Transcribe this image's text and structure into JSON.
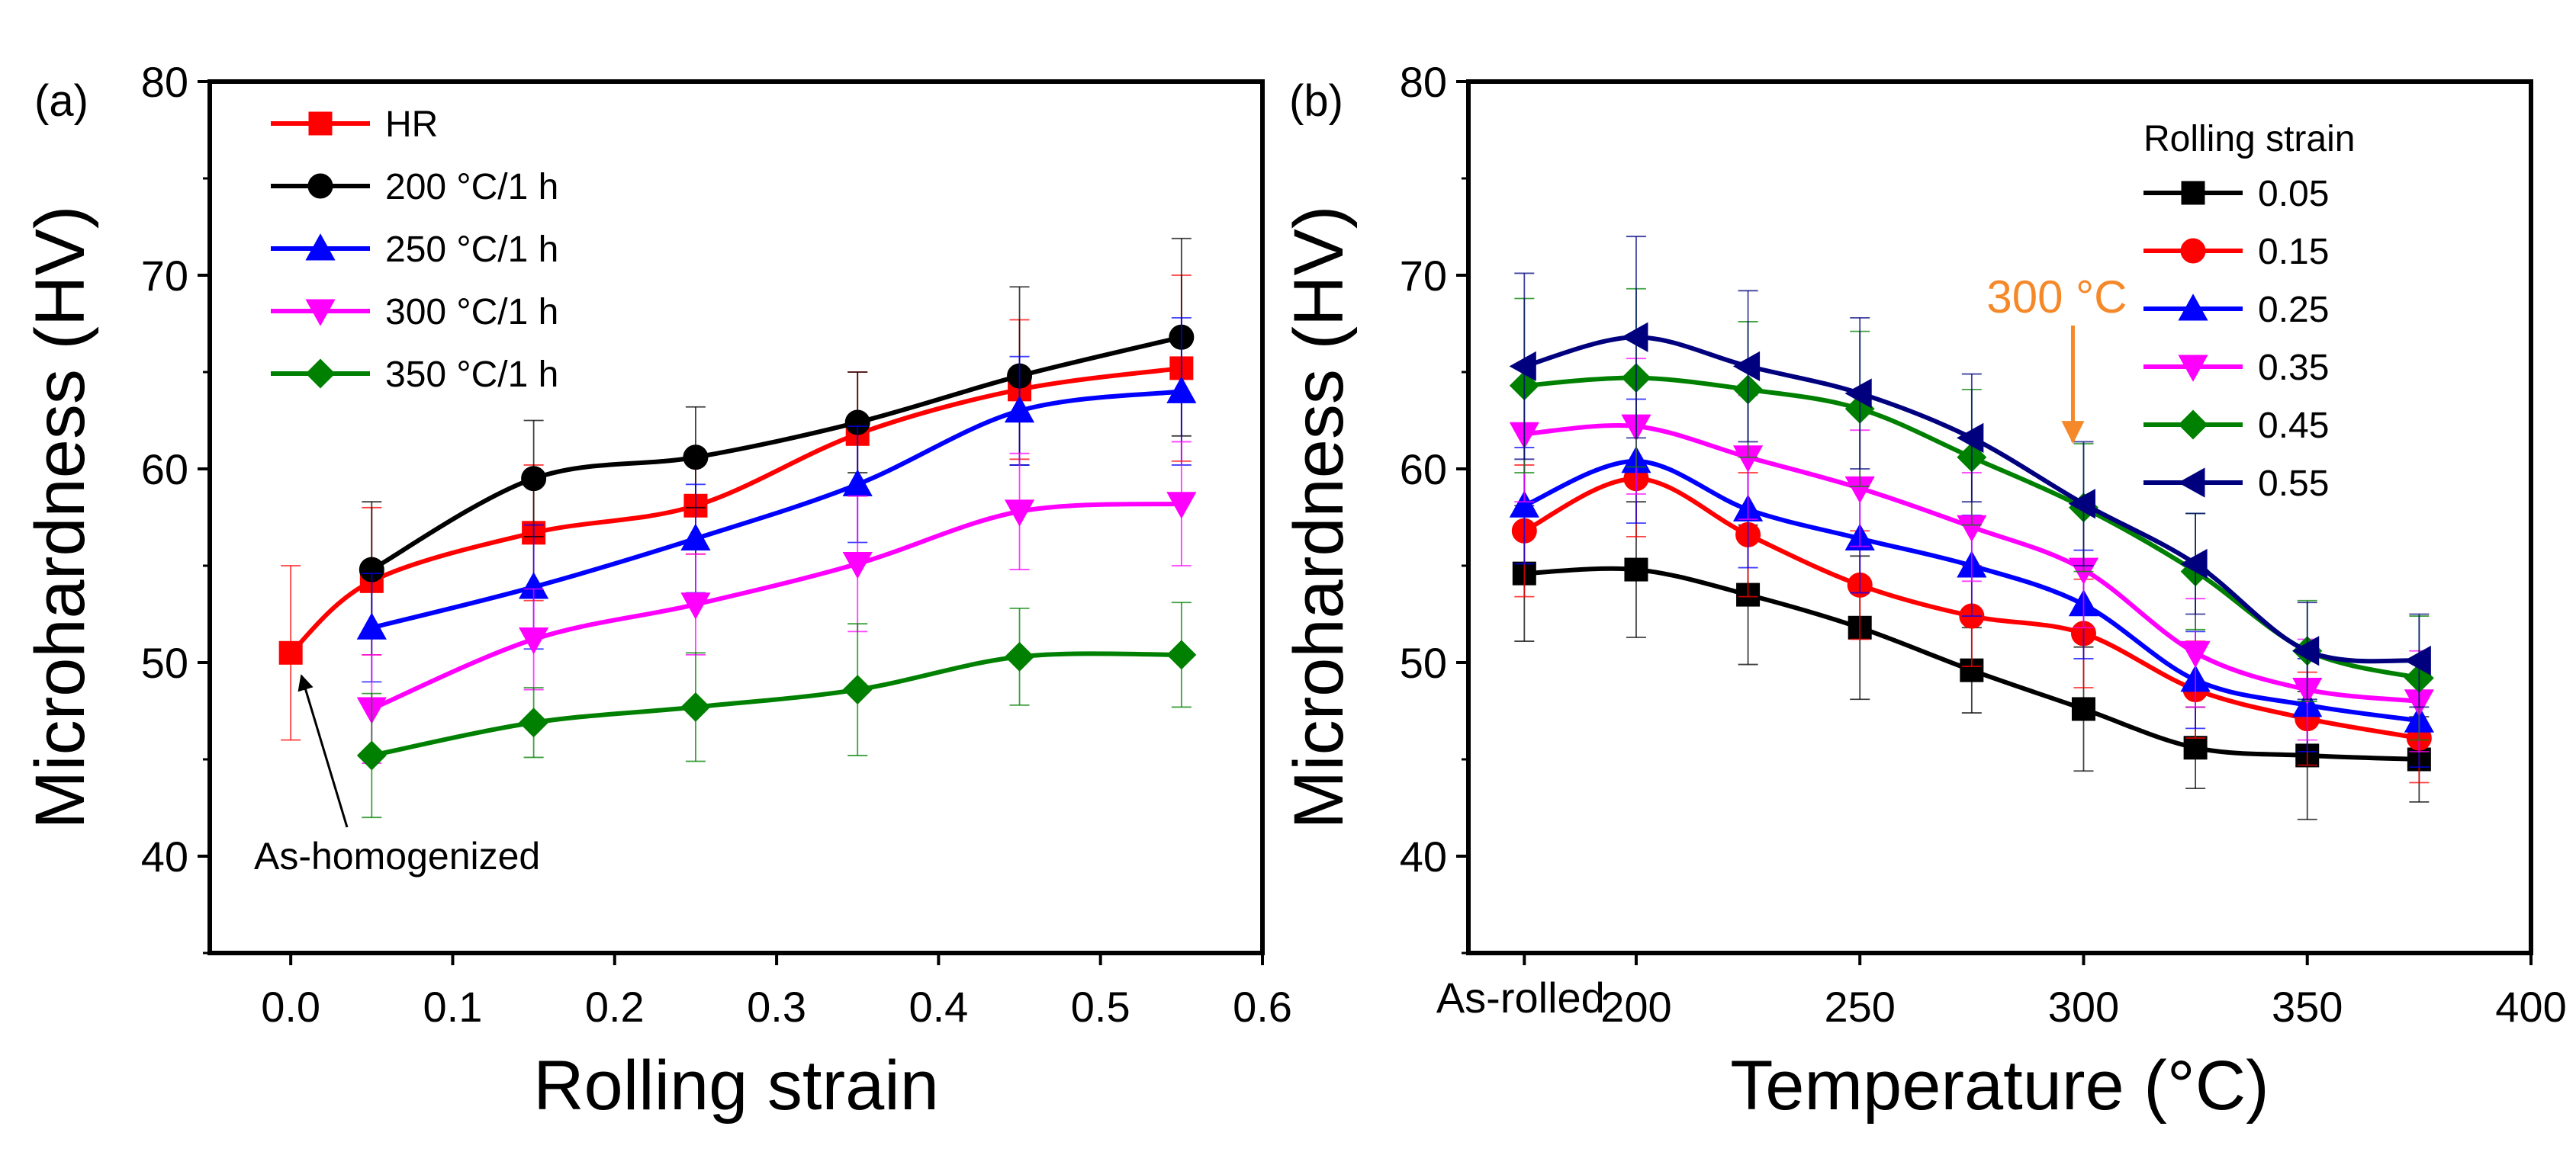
{
  "chart_data": [
    {
      "panel_label": "(a)",
      "type": "line",
      "xlabel": "Rolling strain",
      "ylabel": "Microhardness (HV)",
      "xlim": [
        -0.05,
        0.6
      ],
      "ylim": [
        35,
        80
      ],
      "xticks": [
        0.0,
        0.1,
        0.2,
        0.3,
        0.4,
        0.5,
        0.6
      ],
      "xtick_labels": [
        "0.0",
        "0.1",
        "0.2",
        "0.3",
        "0.4",
        "0.5",
        "0.6"
      ],
      "yticks": [
        40,
        50,
        60,
        70,
        80
      ],
      "ytick_labels": [
        "40",
        "50",
        "60",
        "70",
        "80"
      ],
      "legend_position": "top-left",
      "series": [
        {
          "name": "HR",
          "color": "#ff0000",
          "marker": "square",
          "x": [
            0.0,
            0.05,
            0.15,
            0.25,
            0.35,
            0.45,
            0.55
          ],
          "y": [
            50.5,
            54.2,
            56.7,
            58.1,
            61.8,
            64.1,
            65.2
          ],
          "err": [
            4.5,
            3.8,
            3.5,
            2.5,
            3.2,
            3.6,
            4.8
          ]
        },
        {
          "name": "200 °C/1 h",
          "color": "#000000",
          "marker": "circle",
          "x": [
            0.05,
            0.15,
            0.25,
            0.35,
            0.45,
            0.55
          ],
          "y": [
            54.8,
            59.5,
            60.6,
            62.4,
            64.8,
            66.8
          ],
          "err": [
            3.5,
            3.0,
            2.6,
            2.6,
            4.6,
            5.1
          ]
        },
        {
          "name": "250 °C/1 h",
          "color": "#0000ff",
          "marker": "triangle-up",
          "x": [
            0.05,
            0.15,
            0.25,
            0.35,
            0.45,
            0.55
          ],
          "y": [
            51.8,
            53.9,
            56.4,
            59.2,
            63.0,
            64.0
          ],
          "err": [
            2.8,
            3.2,
            2.8,
            3.0,
            2.8,
            3.8
          ]
        },
        {
          "name": "300 °C/1 h",
          "color": "#ff00ff",
          "marker": "triangle-down",
          "x": [
            0.05,
            0.15,
            0.25,
            0.35,
            0.45,
            0.55
          ],
          "y": [
            47.6,
            51.2,
            53.0,
            55.1,
            57.8,
            58.2
          ],
          "err": [
            2.8,
            2.6,
            2.6,
            3.5,
            3.0,
            3.2
          ]
        },
        {
          "name": "350 °C/1 h",
          "color": "#008000",
          "marker": "diamond",
          "x": [
            0.05,
            0.15,
            0.25,
            0.35,
            0.45,
            0.55
          ],
          "y": [
            45.2,
            46.9,
            47.7,
            48.6,
            50.3,
            50.4
          ],
          "err": [
            3.2,
            1.8,
            2.8,
            3.4,
            2.5,
            2.7
          ]
        }
      ],
      "annotations": [
        {
          "text": "As-homogenized",
          "points_to": {
            "x": 0.0,
            "y": 50.5
          }
        }
      ]
    },
    {
      "panel_label": "(b)",
      "type": "line",
      "xlabel": "Temperature (°C)",
      "ylabel": "Microhardness (HV)",
      "xlim": [
        162.5,
        400
      ],
      "ylim": [
        35,
        80
      ],
      "xticks": [
        200,
        250,
        300,
        350,
        400
      ],
      "xtick_labels": [
        "200",
        "250",
        "300",
        "350",
        "400"
      ],
      "extra_xtick": {
        "label": "As-rolled",
        "x": 175
      },
      "yticks": [
        40,
        50,
        60,
        70,
        80
      ],
      "ytick_labels": [
        "40",
        "50",
        "60",
        "70",
        "80"
      ],
      "legend_title": "Rolling strain",
      "legend_position": "top-right",
      "series": [
        {
          "name": "0.05",
          "color": "#000000",
          "marker": "square",
          "x": [
            175,
            200,
            225,
            250,
            275,
            300,
            325,
            350,
            375
          ],
          "y": [
            54.6,
            54.8,
            53.5,
            51.8,
            49.6,
            47.6,
            45.6,
            45.2,
            45.0
          ],
          "err": [
            3.5,
            3.5,
            3.6,
            3.7,
            2.2,
            3.2,
            2.1,
            3.3,
            2.2
          ]
        },
        {
          "name": "0.15",
          "color": "#ff0000",
          "marker": "circle",
          "x": [
            175,
            200,
            225,
            250,
            275,
            300,
            325,
            350,
            375
          ],
          "y": [
            56.8,
            59.5,
            56.6,
            54.0,
            52.4,
            51.5,
            48.6,
            47.1,
            46.1
          ],
          "err": [
            3.4,
            3.0,
            3.2,
            2.8,
            2.6,
            2.8,
            2.5,
            2.4,
            2.3
          ]
        },
        {
          "name": "0.25",
          "color": "#0000ff",
          "marker": "triangle-up",
          "x": [
            175,
            200,
            225,
            250,
            275,
            300,
            325,
            350,
            375
          ],
          "y": [
            58.1,
            60.4,
            57.9,
            56.4,
            55.0,
            53.0,
            49.1,
            47.8,
            47.0
          ],
          "err": [
            3.0,
            3.2,
            3.0,
            2.8,
            2.6,
            2.8,
            2.5,
            2.4,
            2.4
          ]
        },
        {
          "name": "0.35",
          "color": "#ff00ff",
          "marker": "triangle-down",
          "x": [
            175,
            200,
            225,
            250,
            275,
            300,
            325,
            350,
            375
          ],
          "y": [
            61.8,
            62.2,
            60.6,
            59.0,
            57.0,
            54.8,
            50.5,
            48.6,
            48.0
          ],
          "err": [
            3.5,
            3.5,
            3.2,
            3.0,
            2.8,
            3.0,
            2.8,
            2.6,
            2.6
          ]
        },
        {
          "name": "0.45",
          "color": "#008000",
          "marker": "diamond",
          "x": [
            175,
            200,
            225,
            250,
            275,
            300,
            325,
            350,
            375
          ],
          "y": [
            64.3,
            64.7,
            64.1,
            63.1,
            60.6,
            58.0,
            54.7,
            50.6,
            49.2
          ],
          "err": [
            4.5,
            4.6,
            3.5,
            4.0,
            3.5,
            3.3,
            3.0,
            2.6,
            3.2
          ]
        },
        {
          "name": "0.55",
          "color": "#00007f",
          "marker": "triangle-left",
          "x": [
            175,
            200,
            225,
            250,
            275,
            300,
            325,
            350,
            375
          ],
          "y": [
            65.3,
            66.8,
            65.3,
            63.9,
            61.6,
            58.2,
            55.1,
            50.6,
            50.1
          ],
          "err": [
            4.8,
            5.2,
            3.9,
            3.9,
            3.3,
            3.2,
            2.6,
            2.5,
            2.4
          ]
        }
      ],
      "annotations": [
        {
          "text": "300 °C",
          "color": "#f5892a",
          "points_to": {
            "x": 300,
            "y": 62.2
          }
        }
      ]
    }
  ]
}
